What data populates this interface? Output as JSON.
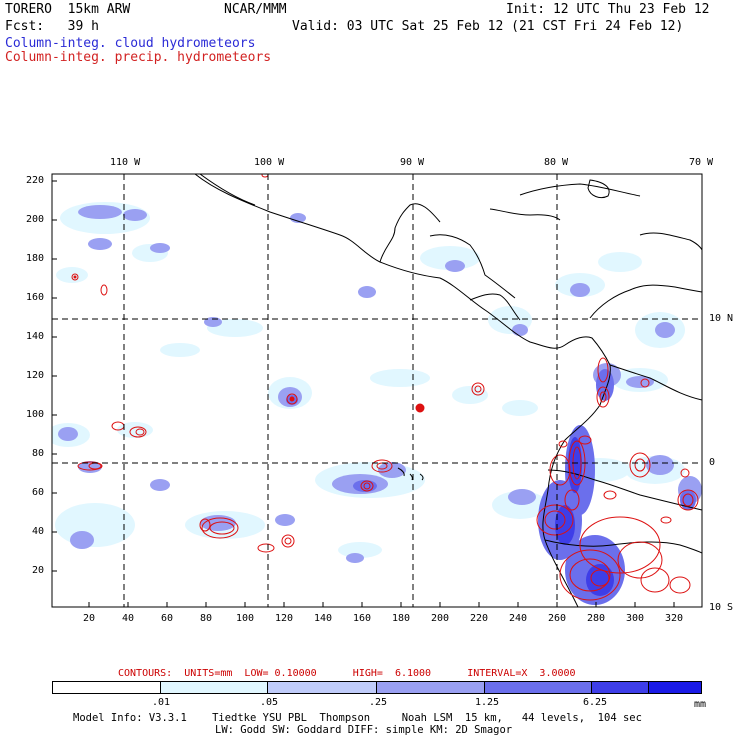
{
  "header": {
    "model": "TORERO  15km ARW",
    "org": "NCAR/MMM",
    "init": "Init: 12 UTC Thu 23 Feb 12",
    "fcst": "Fcst:   39 h",
    "valid": "Valid: 03 UTC Sat 25 Feb 12 (21 CST Fri 24 Feb 12)",
    "field_cloud": "Column-integ. cloud hydrometeors",
    "field_precip": "Column-integ. precip. hydrometeors"
  },
  "colors": {
    "cloud_text": "#2b2bd6",
    "precip_text": "#d22222",
    "precip_contour": "#dd1111"
  },
  "axes": {
    "top_lon": [
      "110 W",
      "100 W",
      "90 W",
      "80 W",
      "70 W"
    ],
    "right_lat": [
      "10 N",
      "0",
      "10 S"
    ],
    "left_y": [
      "220",
      "200",
      "180",
      "160",
      "140",
      "120",
      "100",
      "80",
      "60",
      "40",
      "20"
    ],
    "bottom_x": [
      "20",
      "40",
      "60",
      "80",
      "100",
      "120",
      "140",
      "160",
      "180",
      "200",
      "220",
      "240",
      "260",
      "280",
      "300",
      "320"
    ]
  },
  "legend": {
    "contours": "CONTOURS:  UNITS=mm  LOW= 0.10000      HIGH=  6.1000      INTERVAL=X  3.0000",
    "levels": [
      ".01",
      ".05",
      ".25",
      "1.25",
      "6.25"
    ],
    "unit": "mm",
    "fills": [
      "#ffffff",
      "#e1f7ff",
      "#c0ccfa",
      "#9aa0f2",
      "#6b6fec",
      "#3e3ee8",
      "#1a1ae6"
    ]
  },
  "footer": {
    "line1": "Model Info: V3.3.1    Tiedtke YSU PBL  Thompson     Noah LSM  15 km,   44 levels,  104 sec",
    "line2": "LW: Godd SW: Goddard DIFF: simple KM: 2D Smagor"
  }
}
